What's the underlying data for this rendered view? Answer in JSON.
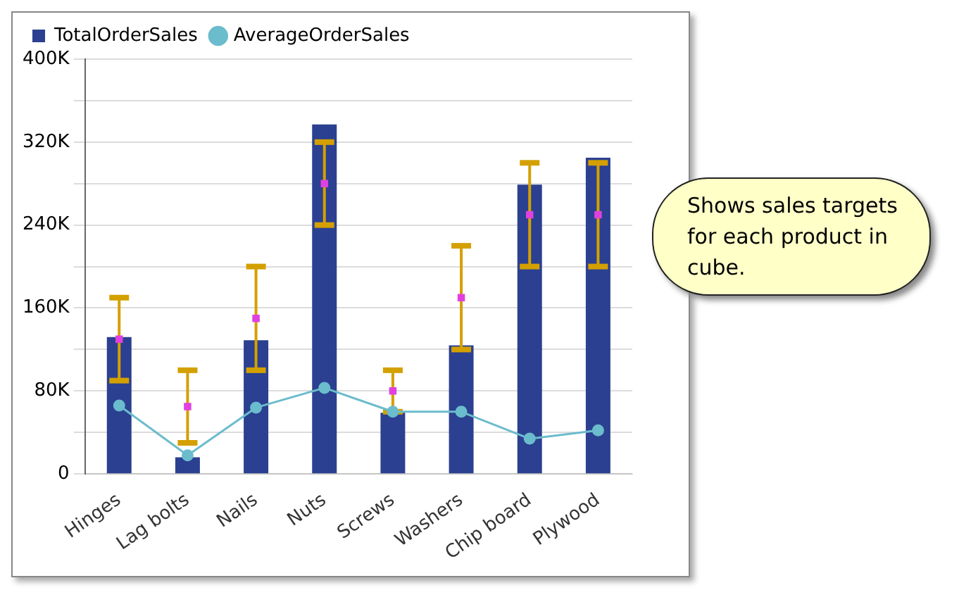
{
  "chart_data": {
    "type": "bar",
    "categories": [
      "Hinges",
      "Lag bolts",
      "Nails",
      "Nuts",
      "Screws",
      "Washers",
      "Chip board",
      "Plywood"
    ],
    "series": [
      {
        "name": "TotalOrderSales",
        "color": "#2b4090",
        "values": [
          132000,
          16000,
          129000,
          337000,
          59000,
          124000,
          279000,
          305000
        ]
      },
      {
        "name": "AverageOrderSales",
        "type": "line",
        "color": "#6bbccc",
        "marker": "circle",
        "values": [
          66000,
          18000,
          64000,
          83000,
          60000,
          60000,
          34000,
          42000
        ]
      },
      {
        "type": "scatter",
        "color": "#e040e0",
        "marker": "square",
        "values": [
          130000,
          65000,
          150000,
          280000,
          80000,
          170000,
          250000,
          250000
        ],
        "errors": [
          [
            90000,
            170000
          ],
          [
            30000,
            100000
          ],
          [
            100000,
            200000
          ],
          [
            240000,
            320000
          ],
          [
            60000,
            100000
          ],
          [
            120000,
            220000
          ],
          [
            200000,
            300000
          ],
          [
            200000,
            300000
          ]
        ]
      }
    ],
    "ylim": [
      0,
      400000
    ],
    "yticks": [
      0,
      {
        "value": 40000,
        "label": null
      },
      {
        "value": 80000,
        "label": "80K"
      },
      {
        "value": 120000,
        "label": null
      },
      {
        "value": 160000,
        "label": "160K"
      },
      {
        "value": 200000,
        "label": null
      },
      {
        "value": 240000,
        "label": "240K"
      },
      {
        "value": 280000,
        "label": null
      },
      {
        "value": 320000,
        "label": "320K"
      },
      {
        "value": 360000,
        "label": null
      },
      {
        "value": 400000,
        "label": "400K"
      }
    ],
    "grid": "y",
    "legend": "top left",
    "annotations": [
      "Shows sales targets for each product in cube."
    ]
  }
}
